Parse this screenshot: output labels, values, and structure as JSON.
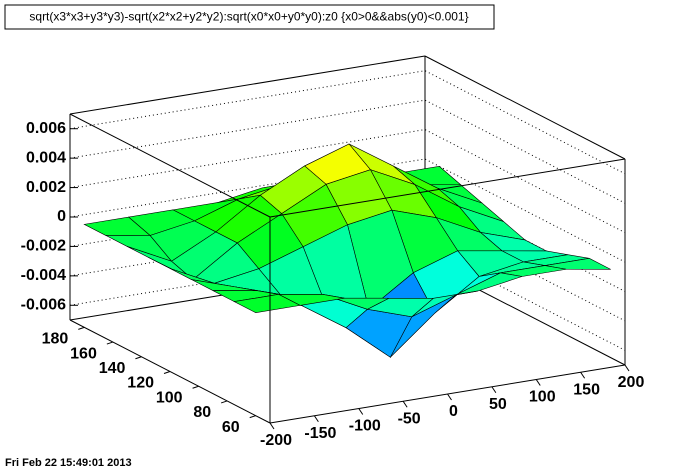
{
  "chart_data": {
    "type": "surface",
    "title": "sqrt(x3*x3+y3*y3)-sqrt(x2*x2+y2*y2):sqrt(x0*x0+y0*y0):z0 {x0>0&&abs(y0)<0.001}",
    "footer": "Fri Feb 22 15:49:01 2013",
    "x": [
      -200,
      -150,
      -100,
      -50,
      0,
      50,
      100,
      150,
      200
    ],
    "y": [
      60,
      75,
      90,
      105,
      120,
      135,
      150,
      165,
      180
    ],
    "z": [
      [
        0,
        0,
        0,
        -0.0005,
        -0.001,
        -0.001,
        -0.0005,
        -0.0005,
        -0.001
      ],
      [
        0,
        0,
        -0.0005,
        -0.002,
        -0.003,
        -0.002,
        -0.001,
        -0.001,
        -0.001
      ],
      [
        0,
        -0.0005,
        -0.002,
        -0.004,
        -0.0065,
        -0.004,
        -0.002,
        -0.0015,
        -0.0015
      ],
      [
        0,
        -0.001,
        -0.002,
        -0.003,
        -0.004,
        -0.002,
        -0.001,
        -0.0015,
        -0.002
      ],
      [
        0,
        -0.0015,
        -0.001,
        0,
        0.001,
        0.0015,
        0.0005,
        -0.001,
        -0.002
      ],
      [
        0,
        -0.002,
        0,
        0.0015,
        0.003,
        0.0035,
        0.002,
        0,
        -0.0015
      ],
      [
        0,
        -0.0015,
        0,
        0.002,
        0.0035,
        0.0045,
        0.0025,
        0.0005,
        -0.001
      ],
      [
        0,
        -0.0005,
        0,
        0.001,
        0.0015,
        0.002,
        0.001,
        0,
        -0.0005
      ],
      [
        0,
        0,
        0,
        0,
        0.0005,
        0.0005,
        0,
        0,
        0
      ]
    ],
    "xlim": [
      -200,
      200
    ],
    "xticks": [
      -200,
      -150,
      -100,
      -50,
      0,
      50,
      100,
      150,
      200
    ],
    "ylim": [
      50,
      190
    ],
    "yticks": [
      60,
      80,
      100,
      120,
      140,
      160,
      180
    ],
    "zlim": [
      -0.007,
      0.007
    ],
    "zticks": [
      -0.006,
      -0.004,
      -0.002,
      0,
      0.002,
      0.004,
      0.006
    ],
    "grid": true
  }
}
